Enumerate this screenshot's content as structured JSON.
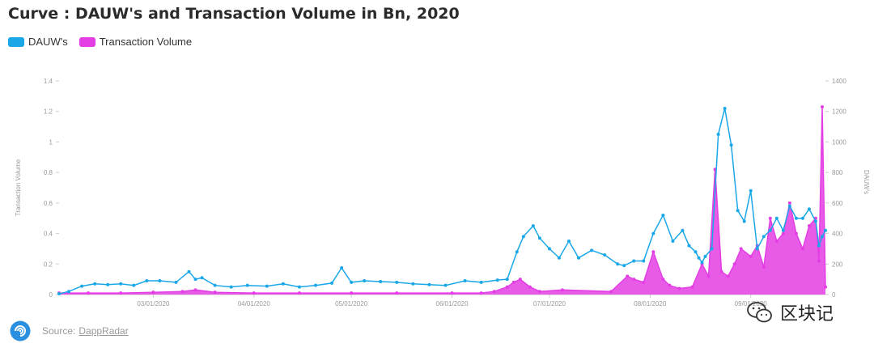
{
  "title": "Curve : DAUW's and Transaction Volume in Bn, 2020",
  "legend": [
    {
      "name": "DAUW's",
      "color": "#1aa7e8"
    },
    {
      "name": "Transaction Volume",
      "color": "#e33ee3"
    }
  ],
  "footer": {
    "source_label": "Source:",
    "source_link": "DappRadar"
  },
  "watermark": {
    "text": "区块记",
    "icon": "wechat-icon"
  },
  "chart_data": {
    "type": "line",
    "x_range": [
      "2020-02-01",
      "2020-09-24"
    ],
    "x_ticks": [
      "03/01/2020",
      "04/01/2020",
      "05/01/2020",
      "06/01/2020",
      "07/01/2020",
      "08/01/2020",
      "09/01/2020"
    ],
    "y_left": {
      "label": "Transaction Volume",
      "range": [
        0,
        1.4
      ],
      "ticks": [
        "0",
        "0.2",
        "0.4",
        "0.6",
        "0.8",
        "1",
        "1.2",
        "1.4"
      ]
    },
    "y_right": {
      "label": "DAUW's",
      "range": [
        0,
        1400
      ],
      "ticks": [
        "0",
        "200",
        "400",
        "600",
        "800",
        "1000",
        "1200",
        "1400"
      ]
    },
    "grid": false,
    "legend_position": "top-left",
    "series": [
      {
        "name": "DAUW's",
        "axis": "right",
        "color": "#1aa7e8",
        "x": [
          "2020-02-01",
          "2020-02-04",
          "2020-02-08",
          "2020-02-12",
          "2020-02-16",
          "2020-02-20",
          "2020-02-24",
          "2020-02-28",
          "2020-03-03",
          "2020-03-08",
          "2020-03-12",
          "2020-03-14",
          "2020-03-16",
          "2020-03-20",
          "2020-03-25",
          "2020-03-30",
          "2020-04-05",
          "2020-04-10",
          "2020-04-15",
          "2020-04-20",
          "2020-04-25",
          "2020-04-28",
          "2020-05-01",
          "2020-05-05",
          "2020-05-10",
          "2020-05-15",
          "2020-05-20",
          "2020-05-25",
          "2020-05-30",
          "2020-06-05",
          "2020-06-10",
          "2020-06-15",
          "2020-06-18",
          "2020-06-21",
          "2020-06-23",
          "2020-06-26",
          "2020-06-28",
          "2020-07-01",
          "2020-07-04",
          "2020-07-07",
          "2020-07-10",
          "2020-07-14",
          "2020-07-18",
          "2020-07-22",
          "2020-07-24",
          "2020-07-27",
          "2020-07-30",
          "2020-08-02",
          "2020-08-05",
          "2020-08-08",
          "2020-08-11",
          "2020-08-13",
          "2020-08-15",
          "2020-08-16",
          "2020-08-17",
          "2020-08-18",
          "2020-08-20",
          "2020-08-22",
          "2020-08-24",
          "2020-08-26",
          "2020-08-28",
          "2020-08-30",
          "2020-09-01",
          "2020-09-03",
          "2020-09-05",
          "2020-09-07",
          "2020-09-09",
          "2020-09-11",
          "2020-09-13",
          "2020-09-15",
          "2020-09-17",
          "2020-09-19",
          "2020-09-21",
          "2020-09-22",
          "2020-09-23",
          "2020-09-24"
        ],
        "values": [
          5,
          20,
          55,
          70,
          65,
          70,
          60,
          90,
          90,
          80,
          150,
          100,
          110,
          60,
          50,
          60,
          55,
          70,
          50,
          60,
          75,
          175,
          80,
          90,
          85,
          80,
          70,
          65,
          60,
          90,
          80,
          95,
          100,
          280,
          380,
          450,
          370,
          300,
          240,
          350,
          240,
          290,
          260,
          200,
          190,
          220,
          220,
          400,
          520,
          350,
          420,
          320,
          280,
          240,
          210,
          250,
          300,
          1050,
          1220,
          980,
          550,
          480,
          680,
          300,
          380,
          420,
          500,
          420,
          580,
          500,
          500,
          560,
          480,
          320,
          380,
          420
        ]
      },
      {
        "name": "Transaction Volume",
        "axis": "left",
        "color": "#e33ee3",
        "x": [
          "2020-02-01",
          "2020-02-10",
          "2020-02-20",
          "2020-03-01",
          "2020-03-10",
          "2020-03-14",
          "2020-03-20",
          "2020-04-01",
          "2020-04-15",
          "2020-05-01",
          "2020-05-15",
          "2020-06-01",
          "2020-06-10",
          "2020-06-14",
          "2020-06-18",
          "2020-06-20",
          "2020-06-22",
          "2020-06-25",
          "2020-06-28",
          "2020-07-05",
          "2020-07-20",
          "2020-07-25",
          "2020-07-27",
          "2020-07-30",
          "2020-08-02",
          "2020-08-05",
          "2020-08-07",
          "2020-08-10",
          "2020-08-14",
          "2020-08-17",
          "2020-08-19",
          "2020-08-21",
          "2020-08-23",
          "2020-08-25",
          "2020-08-27",
          "2020-08-29",
          "2020-09-01",
          "2020-09-03",
          "2020-09-05",
          "2020-09-07",
          "2020-09-09",
          "2020-09-11",
          "2020-09-13",
          "2020-09-15",
          "2020-09-17",
          "2020-09-19",
          "2020-09-21",
          "2020-09-22",
          "2020-09-23",
          "2020-09-24"
        ],
        "values": [
          0.01,
          0.01,
          0.01,
          0.015,
          0.02,
          0.03,
          0.015,
          0.01,
          0.01,
          0.01,
          0.01,
          0.01,
          0.01,
          0.02,
          0.05,
          0.08,
          0.1,
          0.05,
          0.02,
          0.03,
          0.02,
          0.12,
          0.1,
          0.08,
          0.28,
          0.1,
          0.06,
          0.04,
          0.05,
          0.2,
          0.12,
          0.82,
          0.15,
          0.12,
          0.2,
          0.3,
          0.25,
          0.32,
          0.18,
          0.5,
          0.35,
          0.4,
          0.6,
          0.4,
          0.3,
          0.45,
          0.5,
          0.22,
          1.23,
          0.05
        ]
      }
    ]
  }
}
